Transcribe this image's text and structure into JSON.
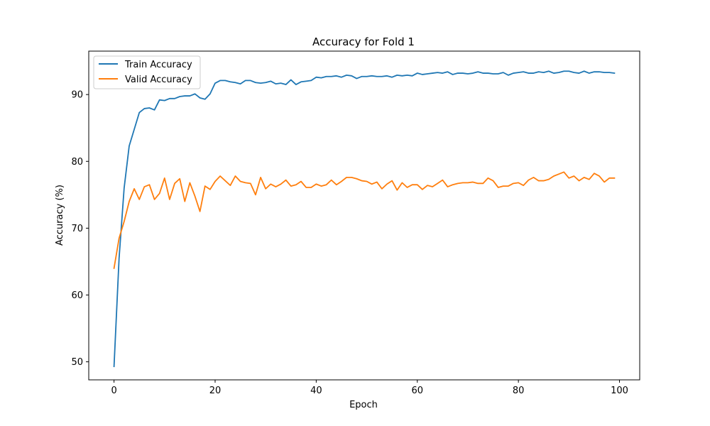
{
  "chart_data": {
    "type": "line",
    "title": "Accuracy for Fold 1",
    "xlabel": "Epoch",
    "ylabel": "Accuracy (%)",
    "xlim": [
      -5,
      104
    ],
    "ylim": [
      47.3,
      96.5
    ],
    "xticks": [
      0,
      20,
      40,
      60,
      80,
      100
    ],
    "yticks": [
      50,
      60,
      70,
      80,
      90
    ],
    "grid": false,
    "legend_position": "upper-left",
    "series": [
      {
        "name": "Train Accuracy",
        "color": "#1f77b4",
        "x": [
          0,
          1,
          2,
          3,
          4,
          5,
          6,
          7,
          8,
          9,
          10,
          11,
          12,
          13,
          14,
          15,
          16,
          17,
          18,
          19,
          20,
          21,
          22,
          23,
          24,
          25,
          26,
          27,
          28,
          29,
          30,
          31,
          32,
          33,
          34,
          35,
          36,
          37,
          38,
          39,
          40,
          41,
          42,
          43,
          44,
          45,
          46,
          47,
          48,
          49,
          50,
          51,
          52,
          53,
          54,
          55,
          56,
          57,
          58,
          59,
          60,
          61,
          62,
          63,
          64,
          65,
          66,
          67,
          68,
          69,
          70,
          71,
          72,
          73,
          74,
          75,
          76,
          77,
          78,
          79,
          80,
          81,
          82,
          83,
          84,
          85,
          86,
          87,
          88,
          89,
          90,
          91,
          92,
          93,
          94,
          95,
          96,
          97,
          98,
          99
        ],
        "values": [
          49.3,
          65.5,
          76.0,
          82.3,
          84.8,
          87.3,
          87.9,
          88.0,
          87.7,
          89.2,
          89.1,
          89.4,
          89.4,
          89.7,
          89.8,
          89.8,
          90.1,
          89.5,
          89.3,
          90.1,
          91.7,
          92.1,
          92.1,
          91.9,
          91.8,
          91.6,
          92.1,
          92.1,
          91.8,
          91.7,
          91.8,
          92.0,
          91.6,
          91.7,
          91.5,
          92.2,
          91.5,
          91.9,
          92.0,
          92.1,
          92.6,
          92.5,
          92.7,
          92.7,
          92.8,
          92.6,
          92.9,
          92.8,
          92.4,
          92.7,
          92.7,
          92.8,
          92.7,
          92.7,
          92.8,
          92.6,
          92.9,
          92.8,
          92.9,
          92.8,
          93.2,
          93.0,
          93.1,
          93.2,
          93.3,
          93.2,
          93.4,
          93.0,
          93.2,
          93.2,
          93.1,
          93.2,
          93.4,
          93.2,
          93.2,
          93.1,
          93.1,
          93.3,
          92.9,
          93.2,
          93.3,
          93.4,
          93.2,
          93.2,
          93.4,
          93.3,
          93.5,
          93.2,
          93.3,
          93.5,
          93.5,
          93.3,
          93.2,
          93.5,
          93.2,
          93.4,
          93.4,
          93.3,
          93.3,
          93.2
        ]
      },
      {
        "name": "Valid Accuracy",
        "color": "#ff7f0e",
        "x": [
          0,
          1,
          2,
          3,
          4,
          5,
          6,
          7,
          8,
          9,
          10,
          11,
          12,
          13,
          14,
          15,
          16,
          17,
          18,
          19,
          20,
          21,
          22,
          23,
          24,
          25,
          26,
          27,
          28,
          29,
          30,
          31,
          32,
          33,
          34,
          35,
          36,
          37,
          38,
          39,
          40,
          41,
          42,
          43,
          44,
          45,
          46,
          47,
          48,
          49,
          50,
          51,
          52,
          53,
          54,
          55,
          56,
          57,
          58,
          59,
          60,
          61,
          62,
          63,
          64,
          65,
          66,
          67,
          68,
          69,
          70,
          71,
          72,
          73,
          74,
          75,
          76,
          77,
          78,
          79,
          80,
          81,
          82,
          83,
          84,
          85,
          86,
          87,
          88,
          89,
          90,
          91,
          92,
          93,
          94,
          95,
          96,
          97,
          98,
          99
        ],
        "values": [
          64.0,
          68.5,
          71.0,
          74.0,
          75.9,
          74.3,
          76.2,
          76.5,
          74.3,
          75.2,
          77.5,
          74.3,
          76.7,
          77.4,
          74.0,
          76.8,
          74.8,
          72.5,
          76.3,
          75.8,
          77.0,
          77.8,
          77.1,
          76.4,
          77.8,
          77.0,
          76.8,
          76.7,
          75.0,
          77.6,
          75.9,
          76.6,
          76.2,
          76.6,
          77.2,
          76.3,
          76.5,
          77.0,
          76.1,
          76.1,
          76.6,
          76.3,
          76.5,
          77.2,
          76.5,
          77.0,
          77.6,
          77.6,
          77.4,
          77.1,
          77.0,
          76.6,
          76.9,
          75.9,
          76.6,
          77.1,
          75.7,
          76.8,
          76.1,
          76.5,
          76.5,
          75.8,
          76.4,
          76.2,
          76.7,
          77.2,
          76.2,
          76.5,
          76.7,
          76.8,
          76.8,
          76.9,
          76.7,
          76.7,
          77.5,
          77.1,
          76.1,
          76.3,
          76.3,
          76.7,
          76.8,
          76.4,
          77.2,
          77.6,
          77.1,
          77.1,
          77.3,
          77.8,
          78.1,
          78.4,
          77.5,
          77.8,
          77.1,
          77.6,
          77.3,
          78.2,
          77.8,
          76.9,
          77.5,
          77.5
        ]
      }
    ]
  }
}
